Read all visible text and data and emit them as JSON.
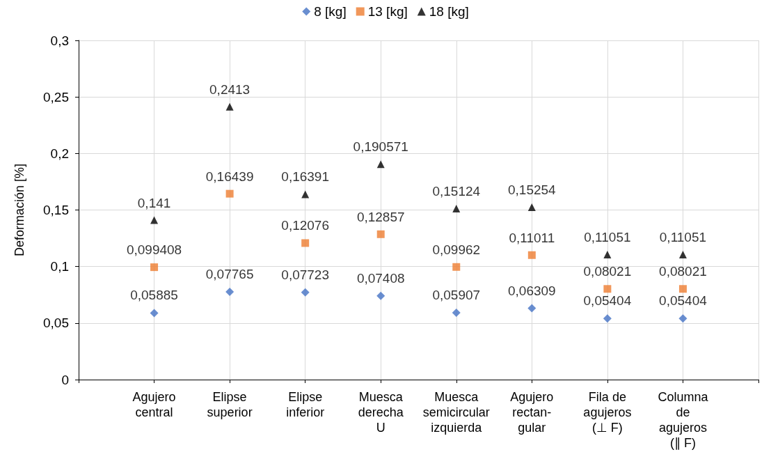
{
  "chart_data": {
    "type": "scatter",
    "ylabel": "Deformación [%]",
    "categories": [
      null,
      "Agujero\ncentral",
      "Elipse\nsuperior",
      "Elipse\ninferior",
      "Muesca\nderecha\nU",
      "Muesca\nsemicircular\nizquierda",
      "Agujero\nrectan-\ngular",
      "Fila de\nagujeros\n(⊥ F)",
      "Columna\nde\nagujeros\n(∥ F)",
      null
    ],
    "series": [
      {
        "name": "8 [kg]",
        "color": "#4472c4",
        "marker": "diamond",
        "values": [
          null,
          0.05885,
          0.07765,
          0.07723,
          0.07408,
          0.05907,
          0.06309,
          0.05404,
          0.05404,
          null
        ],
        "value_labels": [
          null,
          "0,05885",
          "0,07765",
          "0,07723",
          "0,07408",
          "0,05907",
          "0,06309",
          "0,05404",
          "0,05404",
          null
        ]
      },
      {
        "name": "13 [kg]",
        "color": "#ed7d31",
        "marker": "square",
        "values": [
          null,
          0.099408,
          0.16439,
          0.12076,
          0.12857,
          0.09962,
          0.11011,
          0.08021,
          0.08021,
          null
        ],
        "value_labels": [
          null,
          "0,099408",
          "0,16439",
          "0,12076",
          "0,12857",
          "0,09962",
          "0,11011",
          "0,08021",
          "0,08021",
          null
        ]
      },
      {
        "name": "18 [kg]",
        "color": "#000000",
        "marker": "triangle",
        "values": [
          null,
          0.141,
          0.2413,
          0.16391,
          0.190571,
          0.15124,
          0.15254,
          0.11051,
          0.11051,
          null
        ],
        "value_labels": [
          null,
          "0,141",
          "0,2413",
          "0,16391",
          "0,190571",
          "0,15124",
          "0,15254",
          "0,11051",
          "0,11051",
          null
        ]
      }
    ],
    "ylim": [
      0,
      0.3
    ],
    "yticks": [
      0,
      {
        "value": 0.05,
        "label": "0,05"
      },
      {
        "value": 0.1,
        "label": "0,1"
      },
      {
        "value": 0.15,
        "label": "0,15"
      },
      {
        "value": 0.2,
        "label": "0,2"
      },
      {
        "value": 0.25,
        "label": "0,25"
      },
      {
        "value": 0.3,
        "label": "0,3"
      }
    ],
    "grid": true,
    "legend": "top"
  }
}
